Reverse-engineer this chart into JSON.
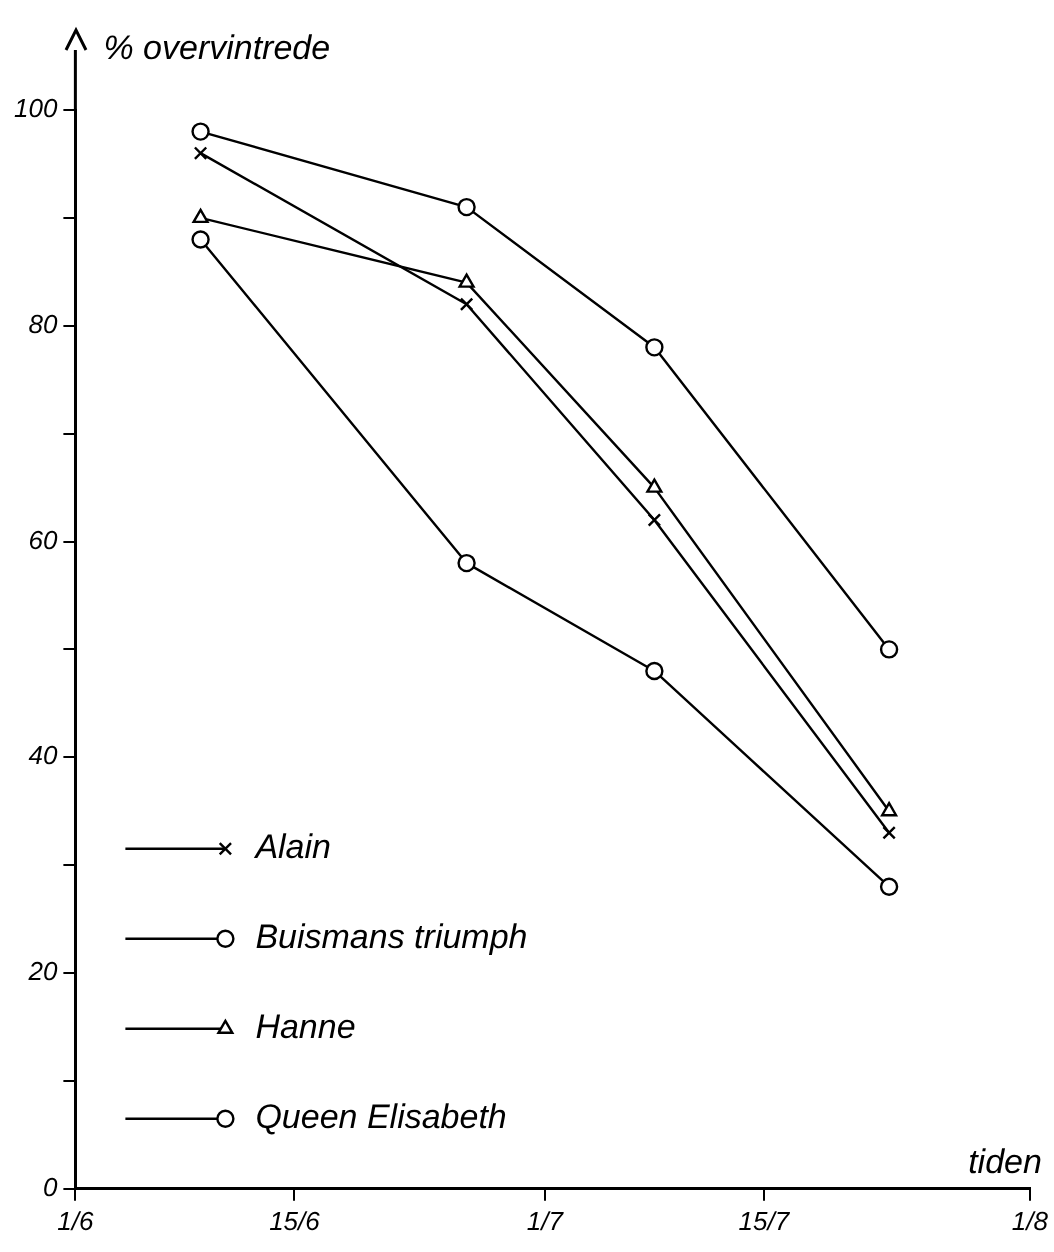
{
  "chart_data": {
    "type": "line",
    "ylabel": "% overvintrede",
    "xlabel": "tiden",
    "x": [
      "--06-09",
      "--06-26",
      "--07-08",
      "--07-23"
    ],
    "series": [
      {
        "name": "Alain",
        "color": "#000000",
        "marker": "cross",
        "values": [
          96,
          82,
          62,
          33
        ]
      },
      {
        "name": "Buismans triumph",
        "color": "#000000",
        "marker": "circle",
        "values": [
          98,
          91,
          78,
          50
        ]
      },
      {
        "name": "Hanne",
        "color": "#000000",
        "marker": "triangle",
        "values": [
          90,
          84,
          65,
          35
        ]
      },
      {
        "name": "Queen Elisabeth",
        "color": "#000000",
        "marker": "circle",
        "values": [
          88,
          58,
          48,
          28
        ]
      }
    ],
    "xlim": [
      "--06-01",
      "--08-01"
    ],
    "xticks": [
      {
        "value": "--06-01",
        "label": "1/6"
      },
      {
        "value": "--06-15",
        "label": "15/6"
      },
      {
        "value": "--07-01",
        "label": "1/7"
      },
      {
        "value": "--07-15",
        "label": "15/7"
      },
      {
        "value": "--08-01",
        "label": "1/8"
      }
    ],
    "ylim": [
      0,
      100
    ],
    "yticks": [
      0,
      {
        "value": 10,
        "label": null
      },
      20,
      {
        "value": 30,
        "label": null
      },
      40,
      {
        "value": 50,
        "label": null
      },
      60,
      {
        "value": 70,
        "label": null
      },
      80,
      {
        "value": 90,
        "label": null
      },
      100
    ],
    "grid": false,
    "legend": "bottom left",
    "line_style": "solid"
  }
}
